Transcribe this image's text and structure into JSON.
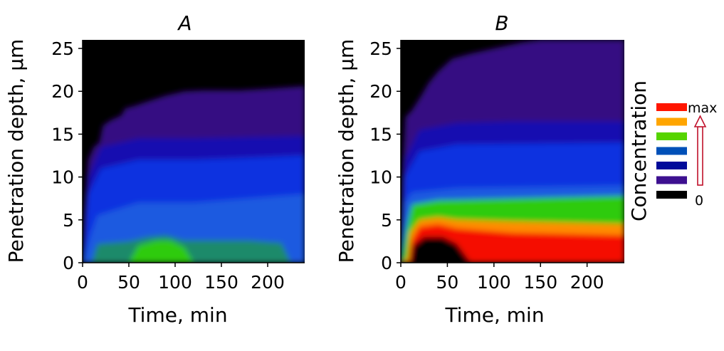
{
  "chart_data": [
    {
      "type": "heatmap",
      "title": "A",
      "xlabel": "Time, min",
      "ylabel": "Penetration depth, µm",
      "xlim": [
        0,
        240
      ],
      "ylim": [
        0,
        26
      ],
      "x_ticks": [
        "0",
        "50",
        "100",
        "150",
        "200"
      ],
      "x_tick_values": [
        0,
        50,
        100,
        150,
        200
      ],
      "y_ticks": [
        "0",
        "5",
        "10",
        "15",
        "20",
        "25"
      ],
      "y_tick_values": [
        0,
        5,
        10,
        15,
        20,
        25
      ],
      "front_boundary": [
        [
          0,
          0
        ],
        [
          2,
          6
        ],
        [
          6,
          12
        ],
        [
          12,
          13.5
        ],
        [
          18,
          14
        ],
        [
          22,
          16
        ],
        [
          30,
          16.6
        ],
        [
          42,
          17.2
        ],
        [
          46,
          18
        ],
        [
          56,
          18.3
        ],
        [
          70,
          18.8
        ],
        [
          90,
          19.5
        ],
        [
          110,
          20
        ],
        [
          130,
          20.1
        ],
        [
          170,
          20.1
        ],
        [
          200,
          20.3
        ],
        [
          240,
          20.6
        ]
      ],
      "bands": [
        {
          "level": 1,
          "upper": [
            [
              0,
              0
            ],
            [
              6,
              10
            ],
            [
              20,
              13.5
            ],
            [
              60,
              14.5
            ],
            [
              120,
              14.5
            ],
            [
              240,
              14.8
            ]
          ]
        },
        {
          "level": 2,
          "upper": [
            [
              0,
              0
            ],
            [
              6,
              8
            ],
            [
              20,
              11
            ],
            [
              60,
              12
            ],
            [
              120,
              12
            ],
            [
              240,
              12.5
            ]
          ]
        },
        {
          "level": 3,
          "upper": [
            [
              0,
              0
            ],
            [
              8,
              3
            ],
            [
              16,
              5.5
            ],
            [
              60,
              7
            ],
            [
              120,
              7
            ],
            [
              240,
              8
            ]
          ]
        },
        {
          "level": 4,
          "upper": [
            [
              0,
              0
            ],
            [
              10,
              0
            ],
            [
              16,
              2.2
            ],
            [
              50,
              2.5
            ],
            [
              70,
              3.0
            ],
            [
              90,
              3.2
            ],
            [
              110,
              2.6
            ],
            [
              180,
              2.6
            ],
            [
              215,
              2.3
            ],
            [
              225,
              0
            ],
            [
              240,
              0
            ]
          ]
        },
        {
          "level": 5,
          "upper": [
            [
              0,
              0
            ],
            [
              50,
              0
            ],
            [
              60,
              2.0
            ],
            [
              80,
              2.6
            ],
            [
              95,
              2.6
            ],
            [
              110,
              1.8
            ],
            [
              120,
              0
            ],
            [
              240,
              0
            ]
          ]
        }
      ]
    },
    {
      "type": "heatmap",
      "title": "B",
      "xlabel": "Time, min",
      "ylabel": "Penetration depth, µm",
      "xlim": [
        0,
        240
      ],
      "ylim": [
        0,
        26
      ],
      "x_ticks": [
        "0",
        "50",
        "100",
        "150",
        "200"
      ],
      "x_tick_values": [
        0,
        50,
        100,
        150,
        200
      ],
      "y_ticks": [
        "0",
        "5",
        "10",
        "15",
        "20",
        "25"
      ],
      "y_tick_values": [
        0,
        5,
        10,
        15,
        20,
        25
      ],
      "front_boundary": [
        [
          0,
          0
        ],
        [
          2,
          11
        ],
        [
          5,
          17
        ],
        [
          12,
          17.8
        ],
        [
          22,
          19.5
        ],
        [
          30,
          21
        ],
        [
          40,
          22.3
        ],
        [
          55,
          23.8
        ],
        [
          75,
          24.4
        ],
        [
          100,
          25
        ],
        [
          130,
          25.7
        ],
        [
          150,
          26
        ],
        [
          240,
          26
        ]
      ],
      "bands": [
        {
          "level": 1,
          "upper": [
            [
              0,
              0
            ],
            [
              4,
              12
            ],
            [
              20,
              15.5
            ],
            [
              60,
              16.3
            ],
            [
              120,
              16.5
            ],
            [
              240,
              16.5
            ]
          ]
        },
        {
          "level": 2,
          "upper": [
            [
              0,
              0
            ],
            [
              4,
              10
            ],
            [
              20,
              13
            ],
            [
              60,
              13.8
            ],
            [
              240,
              14
            ]
          ]
        },
        {
          "level": 3,
          "upper": [
            [
              0,
              0
            ],
            [
              4,
              7
            ],
            [
              12,
              8.2
            ],
            [
              60,
              8.7
            ],
            [
              240,
              9
            ]
          ]
        },
        {
          "level": 4,
          "upper": [
            [
              0,
              0
            ],
            [
              6,
              4
            ],
            [
              12,
              6.8
            ],
            [
              40,
              7.3
            ],
            [
              120,
              7.5
            ],
            [
              240,
              7.8
            ]
          ]
        },
        {
          "level": 5,
          "upper": [
            [
              0,
              0
            ],
            [
              7,
              0.5
            ],
            [
              10,
              3.5
            ],
            [
              20,
              5.0
            ],
            [
              40,
              5.3
            ],
            [
              60,
              5.0
            ],
            [
              120,
              4.8
            ],
            [
              240,
              4.5
            ]
          ]
        },
        {
          "level": 6,
          "upper": [
            [
              0,
              0
            ],
            [
              8,
              0
            ],
            [
              11,
              2.5
            ],
            [
              20,
              4.2
            ],
            [
              40,
              4.5
            ],
            [
              60,
              4.0
            ],
            [
              120,
              3.5
            ],
            [
              240,
              3.2
            ]
          ]
        },
        {
          "level": 7,
          "upper": [
            [
              0,
              0
            ],
            [
              10,
              0
            ],
            [
              13,
              2.0
            ],
            [
              25,
              3.0
            ],
            [
              45,
              3.0
            ],
            [
              60,
              2.2
            ],
            [
              75,
              0
            ],
            [
              240,
              0
            ]
          ]
        }
      ]
    }
  ],
  "colorbar": {
    "title": "Concentration",
    "max_label": "max",
    "min_label": "0",
    "swatches": [
      "#ff1500",
      "#ffa500",
      "#55d400",
      "#0050b8",
      "#000b9a",
      "#3d1090",
      "#000000"
    ],
    "arrow_color": "#c0102a"
  },
  "colors": {
    "background_front": "#000000",
    "levels": [
      "#000000",
      "#340a82",
      "#1808b0",
      "#0830e0",
      "#1a5ae0",
      "#1e8a6a",
      "#2ecb10",
      "#ff8c00",
      "#ff5a00",
      "#f51000"
    ]
  }
}
